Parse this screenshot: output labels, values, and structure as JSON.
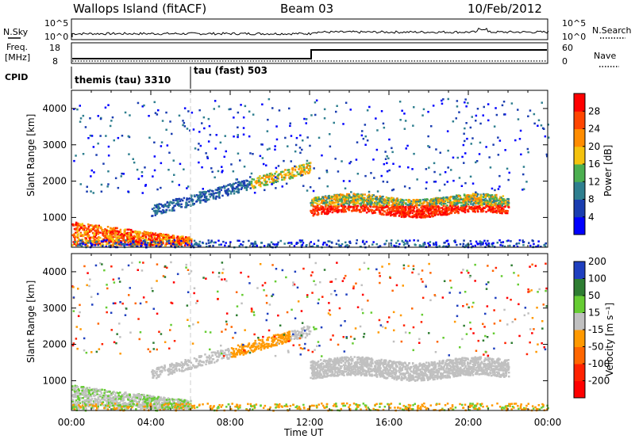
{
  "header": {
    "station": "Wallops Island (fitACF)",
    "beam": "Beam 03",
    "date": "10/Feb/2012"
  },
  "summary_labels": {
    "nsky": "N.Sky",
    "nsearch": "N.Search",
    "freq": "Freq.",
    "freq_unit": "[MHz]",
    "nave": "Nave",
    "cpid": "CPID",
    "exp10": "10^5",
    "exp0": "10^0",
    "f18": "18",
    "f8": "8",
    "n60": "60",
    "n0": "0"
  },
  "cpid_segments": [
    {
      "label": "themis (tau) 3310"
    },
    {
      "label": "tau (fast) 503"
    }
  ],
  "colors": {
    "power": [
      "#0000ff",
      "#1a3db0",
      "#2f7f8f",
      "#4caf50",
      "#f4c20d",
      "#ff8c00",
      "#ff4500",
      "#ff0000"
    ],
    "velocity": [
      "#1f3fbf",
      "#2e7d32",
      "#66cc33",
      "#c0c0c0",
      "#ff9900",
      "#ff6600",
      "#ff2200",
      "#ff0000"
    ]
  },
  "chart_data": [
    {
      "type": "heatmap",
      "panel": "power",
      "ylabel": "Slant Range [km]",
      "xlabel": "Time UT",
      "x_ticks": [
        "00:00",
        "04:00",
        "08:00",
        "12:00",
        "16:00",
        "20:00",
        "00:00"
      ],
      "y_ticks": [
        "1000",
        "2000",
        "3000",
        "4000"
      ],
      "ylim": [
        180,
        4500
      ],
      "colorbar_label": "Power [dB]",
      "colorbar_ticks": [
        "4",
        "8",
        "12",
        "16",
        "20",
        "24",
        "28"
      ],
      "colorbar_range": [
        0,
        30
      ]
    },
    {
      "type": "heatmap",
      "panel": "velocity",
      "ylabel": "Slant Range [km]",
      "xlabel": "Time UT",
      "x_ticks": [
        "00:00",
        "04:00",
        "08:00",
        "12:00",
        "16:00",
        "20:00",
        "00:00"
      ],
      "y_ticks": [
        "1000",
        "2000",
        "3000",
        "4000"
      ],
      "ylim": [
        180,
        4500
      ],
      "colorbar_label": "Velocity [m s⁻¹]",
      "colorbar_ticks": [
        "200",
        "100",
        "50",
        "15",
        "-15",
        "-50",
        "-100",
        "-200"
      ],
      "colorbar_range": [
        -200,
        200
      ]
    }
  ]
}
